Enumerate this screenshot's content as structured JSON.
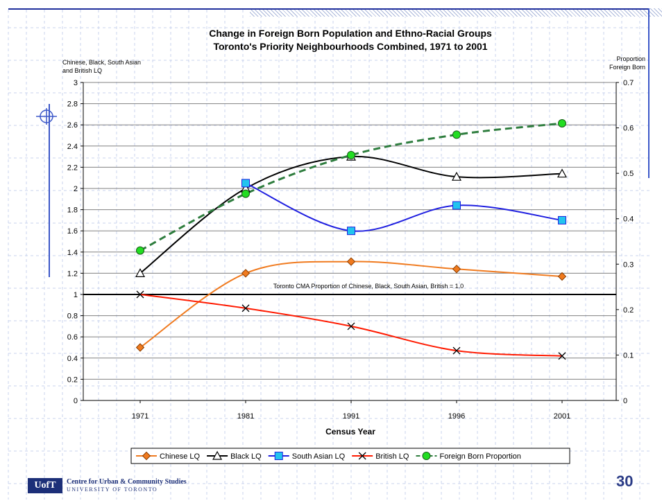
{
  "slide": {
    "number": "30",
    "footer_line1": "Centre for Urban & Community Studies",
    "footer_line2": "UNIVERSITY OF TORONTO",
    "logo_text": "UofT",
    "accent_color": "#1c2f78"
  },
  "chart_data": {
    "type": "line",
    "title": "Change in Foreign Born Population and Ethno-Racial Groups",
    "subtitle": "Toronto's Priority Neighbourhoods Combined, 1971 to 2001",
    "xlabel": "Census Year",
    "ylabel_left": "Chinese, Black, South Asian and British LQ",
    "ylabel_right": "Proportion Foreign Born",
    "categories": [
      "1971",
      "1981",
      "1991",
      "1996",
      "2001"
    ],
    "ylim_left": [
      0,
      3
    ],
    "ylim_right": [
      0,
      0.7
    ],
    "yticks_left": [
      "0",
      "0.2",
      "0.4",
      "0.6",
      "0.8",
      "1",
      "1.2",
      "1.4",
      "1.6",
      "1.8",
      "2",
      "2.2",
      "2.4",
      "2.6",
      "2.8",
      "3"
    ],
    "yticks_right": [
      "0",
      "0.1",
      "0.2",
      "0.3",
      "0.4",
      "0.5",
      "0.6",
      "0.7"
    ],
    "reference_line": {
      "value": 1.0,
      "label": "Toronto CMA Proportion of Chinese, Black, South Asian, British = 1.0"
    },
    "grid": true,
    "legend_position": "bottom",
    "series": [
      {
        "name": "Chinese LQ",
        "axis": "left",
        "color": "#f07a1e",
        "marker": "diamond",
        "values": [
          0.5,
          1.2,
          1.31,
          1.24,
          1.17
        ]
      },
      {
        "name": "Black LQ",
        "axis": "left",
        "color": "#000000",
        "marker": "triangle",
        "values": [
          1.2,
          2.0,
          2.3,
          2.11,
          2.14
        ]
      },
      {
        "name": "South Asian LQ",
        "axis": "left",
        "color": "#1f1fe0",
        "marker": "square",
        "values": [
          null,
          2.05,
          1.6,
          1.84,
          1.7
        ]
      },
      {
        "name": "British LQ",
        "axis": "left",
        "color": "#ff1a00",
        "marker": "x",
        "values": [
          1.0,
          0.87,
          0.7,
          0.47,
          0.42
        ]
      },
      {
        "name": "Foreign Born Proportion",
        "axis": "right",
        "color": "#2e7d3e",
        "marker": "circle",
        "dashed": true,
        "values": [
          0.33,
          0.455,
          0.54,
          0.585,
          0.61
        ]
      }
    ]
  }
}
